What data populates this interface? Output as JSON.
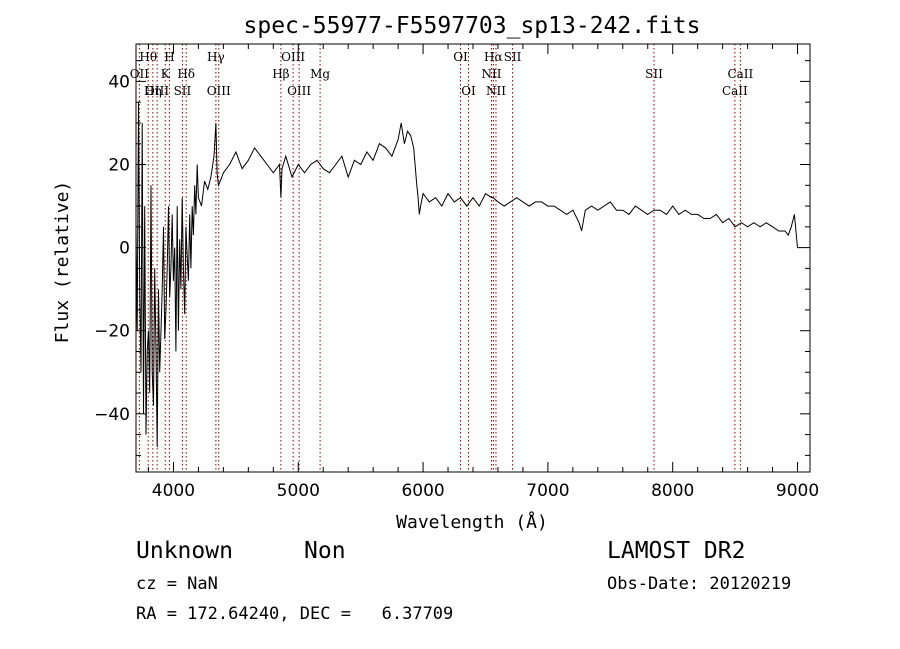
{
  "chart_data": {
    "type": "line",
    "title": "spec-55977-F5597703_sp13-242.fits",
    "xlabel": "Wavelength (Å)",
    "ylabel": "Flux (relative)",
    "xlim": [
      3700,
      9100
    ],
    "ylim": [
      -54,
      49
    ],
    "xticks": [
      4000,
      5000,
      6000,
      7000,
      8000,
      9000
    ],
    "yticks": [
      -40,
      -20,
      0,
      20,
      40
    ],
    "grid": false,
    "line_color": "#000000",
    "marker_color": "#8b0000",
    "series": [
      {
        "x": [
          3700,
          3710,
          3720,
          3730,
          3740,
          3750,
          3760,
          3770,
          3780,
          3790,
          3800,
          3810,
          3820,
          3830,
          3840,
          3850,
          3860,
          3870,
          3880,
          3890,
          3900,
          3910,
          3920,
          3930,
          3940,
          3950,
          3960,
          3970,
          3980,
          3990,
          4000,
          4010,
          4020,
          4030,
          4040,
          4050,
          4060,
          4070,
          4080,
          4090,
          4100,
          4110,
          4120,
          4130,
          4140,
          4150,
          4160,
          4170,
          4180,
          4190,
          4200,
          4225,
          4250,
          4275,
          4300,
          4325,
          4340,
          4350,
          4360,
          4375,
          4400,
          4450,
          4500,
          4550,
          4600,
          4650,
          4700,
          4750,
          4800,
          4850,
          4861,
          4870,
          4900,
          4950,
          5000,
          5050,
          5100,
          5150,
          5200,
          5250,
          5300,
          5350,
          5400,
          5450,
          5500,
          5550,
          5600,
          5650,
          5700,
          5750,
          5800,
          5825,
          5850,
          5875,
          5900,
          5925,
          5950,
          5960,
          5970,
          5980,
          6000,
          6050,
          6100,
          6150,
          6200,
          6250,
          6300,
          6350,
          6400,
          6450,
          6500,
          6550,
          6563,
          6600,
          6650,
          6700,
          6750,
          6800,
          6850,
          6900,
          6950,
          7000,
          7050,
          7100,
          7150,
          7200,
          7250,
          7270,
          7300,
          7350,
          7400,
          7450,
          7500,
          7550,
          7600,
          7650,
          7700,
          7750,
          7800,
          7850,
          7900,
          7950,
          8000,
          8050,
          8100,
          8150,
          8200,
          8250,
          8300,
          8350,
          8400,
          8450,
          8500,
          8550,
          8600,
          8650,
          8700,
          8750,
          8800,
          8850,
          8900,
          8925,
          8950,
          8975,
          9000,
          9025
        ],
        "y": [
          5,
          -20,
          35,
          -10,
          -30,
          30,
          -40,
          10,
          -45,
          -25,
          -20,
          -35,
          15,
          -30,
          -38,
          -5,
          -25,
          -48,
          -10,
          -30,
          -20,
          -10,
          5,
          -22,
          -15,
          -5,
          10,
          -12,
          -5,
          8,
          -8,
          0,
          -25,
          10,
          -20,
          2,
          -10,
          12,
          -5,
          -16,
          5,
          -2,
          -8,
          8,
          -5,
          10,
          3,
          15,
          8,
          20,
          12,
          10,
          16,
          14,
          17,
          22,
          30,
          18,
          15,
          16,
          18,
          20,
          23,
          19,
          21,
          24,
          22,
          20,
          18,
          20,
          12,
          19,
          22,
          17,
          20,
          18,
          20,
          21,
          19,
          18,
          20,
          22,
          17,
          21,
          20,
          23,
          21,
          25,
          24,
          22,
          26,
          30,
          25,
          28,
          27,
          24,
          15,
          12,
          8,
          10,
          13,
          11,
          12,
          10,
          13,
          11,
          12,
          10,
          12,
          10,
          13,
          12,
          12,
          11,
          10,
          11,
          12,
          11,
          10,
          11,
          11,
          10,
          10,
          9,
          8,
          9,
          6,
          4,
          9,
          10,
          9,
          10,
          11,
          9,
          9,
          8,
          10,
          9,
          8,
          9,
          9,
          8,
          10,
          8,
          9,
          8,
          8,
          7,
          7,
          8,
          6,
          7,
          5,
          6,
          5,
          6,
          5,
          6,
          5,
          4,
          4,
          3,
          5,
          8,
          0,
          0
        ]
      }
    ],
    "line_markers": [
      {
        "label": "OII",
        "wl": 3727,
        "pos": "top-2"
      },
      {
        "label": "Hθ",
        "wl": 3798,
        "pos": "top-1"
      },
      {
        "label": "OIII",
        "wl": 3869,
        "pos": "top-3"
      },
      {
        "label": "Hη",
        "wl": 3835,
        "pos": "top-3"
      },
      {
        "label": "H",
        "wl": 3968,
        "pos": "top-1"
      },
      {
        "label": "K",
        "wl": 3934,
        "pos": "top-2"
      },
      {
        "label": "SII",
        "wl": 4072,
        "pos": "top-3"
      },
      {
        "label": "Hδ",
        "wl": 4102,
        "pos": "top-2"
      },
      {
        "label": "Hγ",
        "wl": 4340,
        "pos": "top-1"
      },
      {
        "label": "OIII",
        "wl": 4363,
        "pos": "top-3"
      },
      {
        "label": "Hβ",
        "wl": 4861,
        "pos": "top-2"
      },
      {
        "label": "OIII",
        "wl": 4959,
        "pos": "top-1"
      },
      {
        "label": "OIII",
        "wl": 5007,
        "pos": "top-3"
      },
      {
        "label": "Mg",
        "wl": 5175,
        "pos": "top-2"
      },
      {
        "label": "OI",
        "wl": 6300,
        "pos": "top-1"
      },
      {
        "label": "OI",
        "wl": 6364,
        "pos": "top-3"
      },
      {
        "label": "NII",
        "wl": 6548,
        "pos": "top-2"
      },
      {
        "label": "Hα",
        "wl": 6563,
        "pos": "top-1"
      },
      {
        "label": "NII",
        "wl": 6584,
        "pos": "top-3"
      },
      {
        "label": "SII",
        "wl": 6717,
        "pos": "top-1"
      },
      {
        "label": "SII",
        "wl": 7850,
        "pos": "top-2"
      },
      {
        "label": "CaII",
        "wl": 8498,
        "pos": "top-3"
      },
      {
        "label": "CaII",
        "wl": 8542,
        "pos": "top-2"
      }
    ]
  },
  "footer": {
    "class": "Unknown",
    "subclass": "Non",
    "survey": "LAMOST DR2",
    "cz": "cz = NaN",
    "obs_date": "Obs-Date: 20120219",
    "radec": "RA = 172.64240, DEC =   6.37709"
  }
}
